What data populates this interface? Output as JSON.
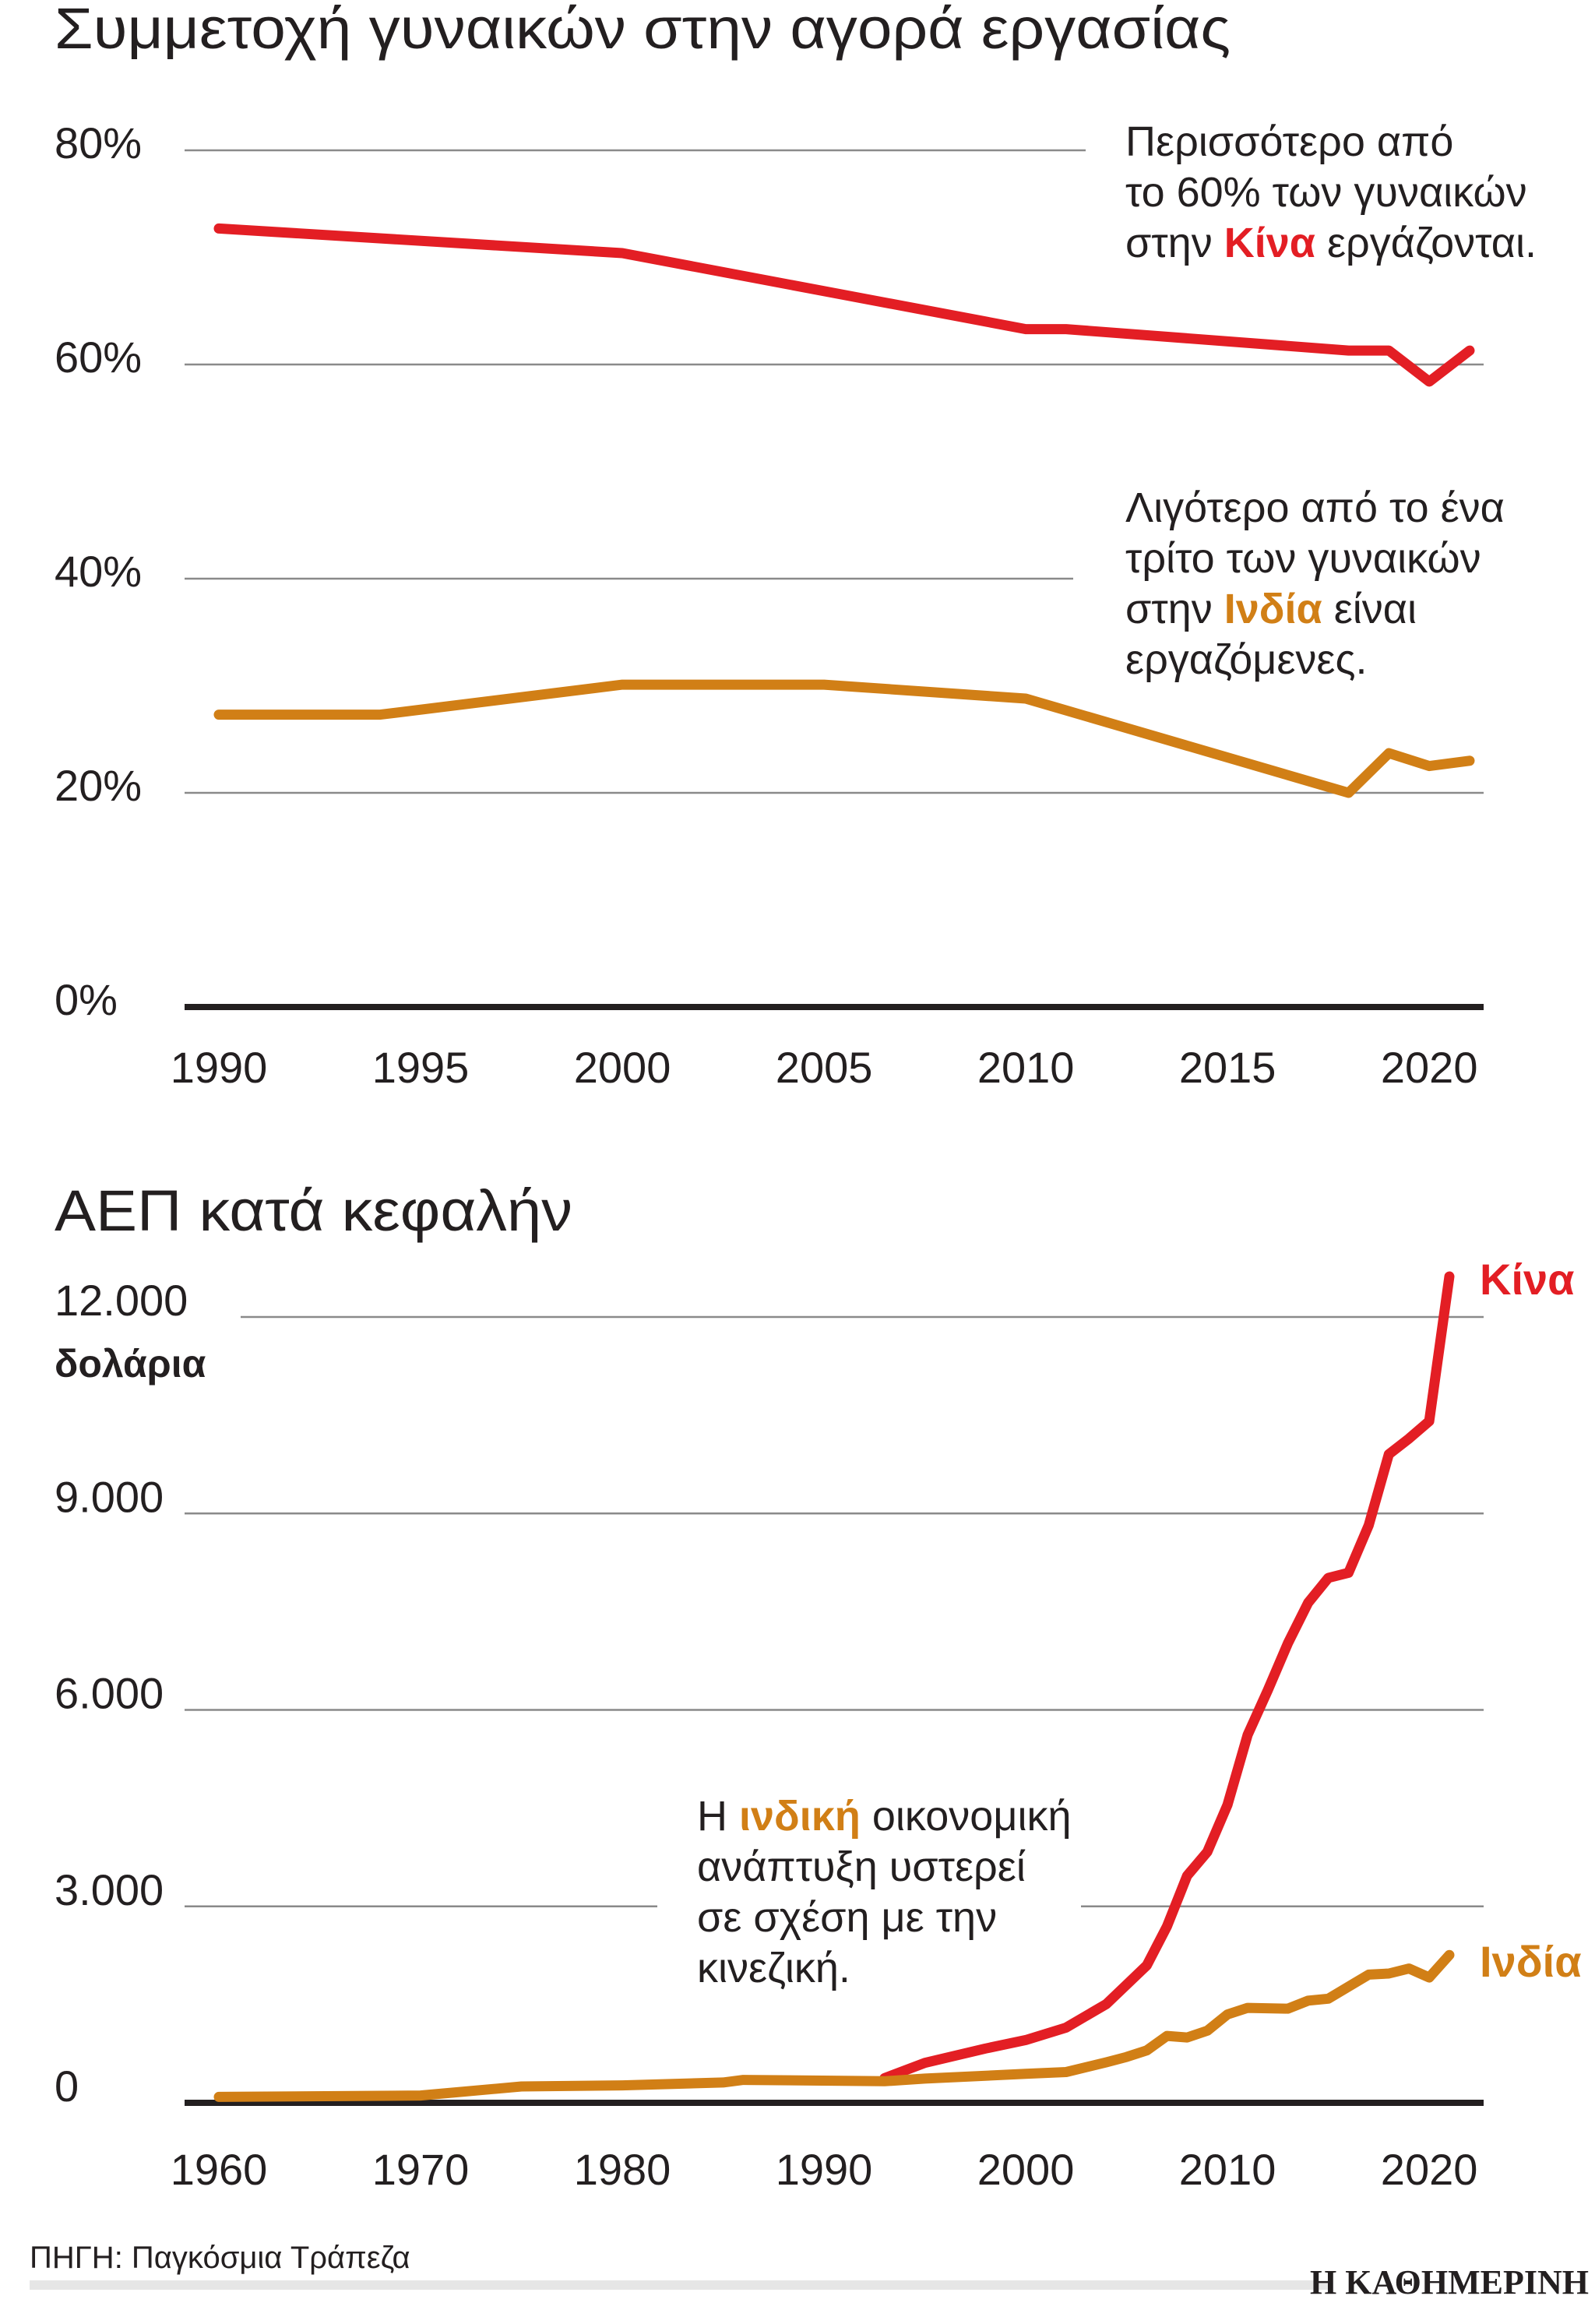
{
  "colors": {
    "china": "#e31e24",
    "india": "#d17f16",
    "text": "#231f20",
    "grid": "#8a8a8a"
  },
  "chart_data": [
    {
      "type": "line",
      "title": "Συμμετοχή γυναικών στην αγορά εργασίας",
      "xlabel": "",
      "ylabel": "",
      "xlim": [
        1990,
        2021
      ],
      "ylim": [
        0,
        80
      ],
      "y_ticks": [
        "0%",
        "20%",
        "40%",
        "60%",
        "80%"
      ],
      "x_ticks": [
        "1990",
        "1995",
        "2000",
        "2005",
        "2010",
        "2015",
        "2020"
      ],
      "grid": true,
      "series": [
        {
          "key": "china",
          "x": [
            1990,
            2000,
            2010,
            2011,
            2018,
            2019,
            2020,
            2021
          ],
          "values": [
            72.7,
            70.4,
            63.3,
            63.3,
            61.3,
            61.3,
            58.4,
            61.3
          ]
        },
        {
          "key": "india",
          "x": [
            1990,
            1994,
            2000,
            2005,
            2010,
            2018,
            2019,
            2020,
            2021
          ],
          "values": [
            27.3,
            27.3,
            30.1,
            30.1,
            28.8,
            20.0,
            23.7,
            22.5,
            23.0
          ]
        }
      ],
      "annotations": [
        {
          "lines": [
            "Περισσότερο από",
            "το 60% των γυναικών",
            "στην ",
            "Κίνα",
            " εργάζονται."
          ]
        },
        {
          "lines": [
            "Λιγότερο από το ένα",
            "τρίτο των γυναικών",
            "στην ",
            "Ινδία",
            " είναι",
            "εργαζόμενες."
          ]
        }
      ]
    },
    {
      "type": "line",
      "title": "ΑΕΠ κατά κεφαλήν",
      "ylabel": "δολάρια",
      "xlim": [
        1960,
        2021
      ],
      "ylim": [
        0,
        12000
      ],
      "y_ticks": [
        "0",
        "3.000",
        "6.000",
        "9.000",
        "12.000"
      ],
      "x_ticks": [
        "1960",
        "1970",
        "1980",
        "1990",
        "2000",
        "2010",
        "2020"
      ],
      "grid": true,
      "series": [
        {
          "name": "Κίνα",
          "key": "china",
          "x": [
            1993,
            1995,
            1998,
            2000,
            2002,
            2004,
            2006,
            2007,
            2008,
            2009,
            2010,
            2011,
            2012,
            2013,
            2014,
            2015,
            2016,
            2017,
            2018,
            2019,
            2020,
            2021
          ],
          "values": [
            377,
            610,
            829,
            959,
            1149,
            1509,
            2099,
            2694,
            3468,
            3832,
            4550,
            5618,
            6301,
            7020,
            7636,
            8016,
            8094,
            8817,
            9905,
            10144,
            10409,
            12618
          ]
        },
        {
          "name": "Ινδία",
          "key": "india",
          "x": [
            1960,
            1970,
            1975,
            1980,
            1985,
            1986,
            1993,
            1995,
            2000,
            2002,
            2004,
            2005,
            2006,
            2007,
            2008,
            2009,
            2010,
            2011,
            2013,
            2014,
            2015,
            2017,
            2018,
            2019,
            2020,
            2021
          ],
          "values": [
            90,
            112,
            250,
            266,
            310,
            350,
            330,
            370,
            442,
            470,
            620,
            700,
            800,
            1022,
            998,
            1101,
            1350,
            1450,
            1438,
            1560,
            1590,
            1958,
            1974,
            2050,
            1913,
            2257
          ]
        }
      ],
      "annotations": [
        {
          "lines": [
            "Η ",
            "ινδική",
            " οικονομική",
            "ανάπτυξη υστερεί",
            "σε σχέση με την",
            "κινεζική."
          ]
        }
      ]
    }
  ],
  "footer": {
    "source": "ΠΗΓΗ: Παγκόσμια Τράπεζα",
    "logo": "Η ΚΑΘΗΜΕΡΙΝΗ"
  }
}
